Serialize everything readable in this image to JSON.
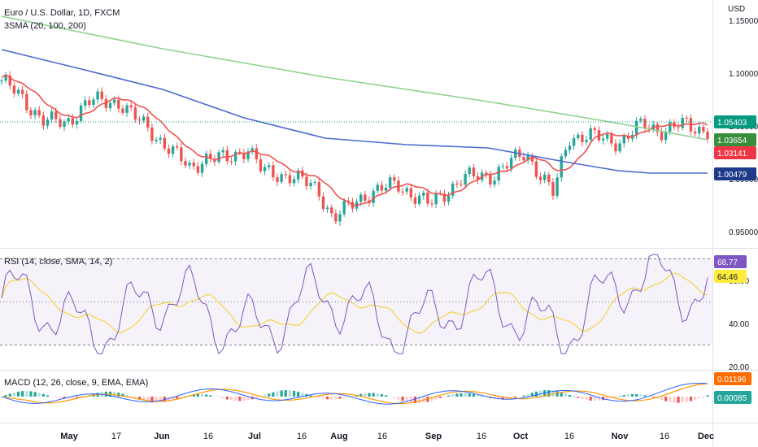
{
  "header": {
    "symbol_title": "Euro / U.S. Dollar, 1D, FXCM",
    "indicator_legend": "3SMA (20, 100, 200)",
    "currency": "USD"
  },
  "chart_data": [
    {
      "type": "candlestick",
      "name": "price",
      "y_ticks": [
        "0.95000",
        "1.00000",
        "1.05000",
        "1.10000",
        "1.15000"
      ],
      "ylim": [
        0.935,
        1.165
      ],
      "x_tick_labels": [
        "May",
        "17",
        "Jun",
        "16",
        "Jul",
        "16",
        "Aug",
        "16",
        "Sep",
        "16",
        "Oct",
        "16",
        "Nov",
        "16",
        "Dec"
      ],
      "price_badges": [
        {
          "value": "1.05403",
          "color": "#089981"
        },
        {
          "value": "1.03654",
          "color": "#388e3c"
        },
        {
          "value": "1.03141",
          "color": "#f23645"
        },
        {
          "value": "1.00479",
          "color": "#1e3a8a"
        }
      ],
      "sma_colors": {
        "sma20": "#ef5350",
        "sma100": "#4a6bcf",
        "sma200": "#8fd18f"
      },
      "up_color": "#26a69a",
      "down_color": "#ef5350"
    },
    {
      "type": "line",
      "name": "rsi",
      "legend": "RSI (14, close, SMA, 14, 2)",
      "y_ticks": [
        "20.00",
        "40.00",
        "60.00"
      ],
      "ylim": [
        17,
        82
      ],
      "bands": [
        30,
        70
      ],
      "mid": 50,
      "badges": [
        {
          "value": "68.77",
          "color": "#7e57c2"
        },
        {
          "value": "64.46",
          "color": "#ffeb3b"
        }
      ]
    },
    {
      "type": "histogram",
      "name": "macd",
      "legend": "MACD (12, 26, close, 9, EMA, EMA)",
      "badges": [
        {
          "value": "0.01196",
          "color": "#ff6d00"
        },
        {
          "value": "0.00085",
          "color": "#26a69a"
        }
      ]
    }
  ]
}
